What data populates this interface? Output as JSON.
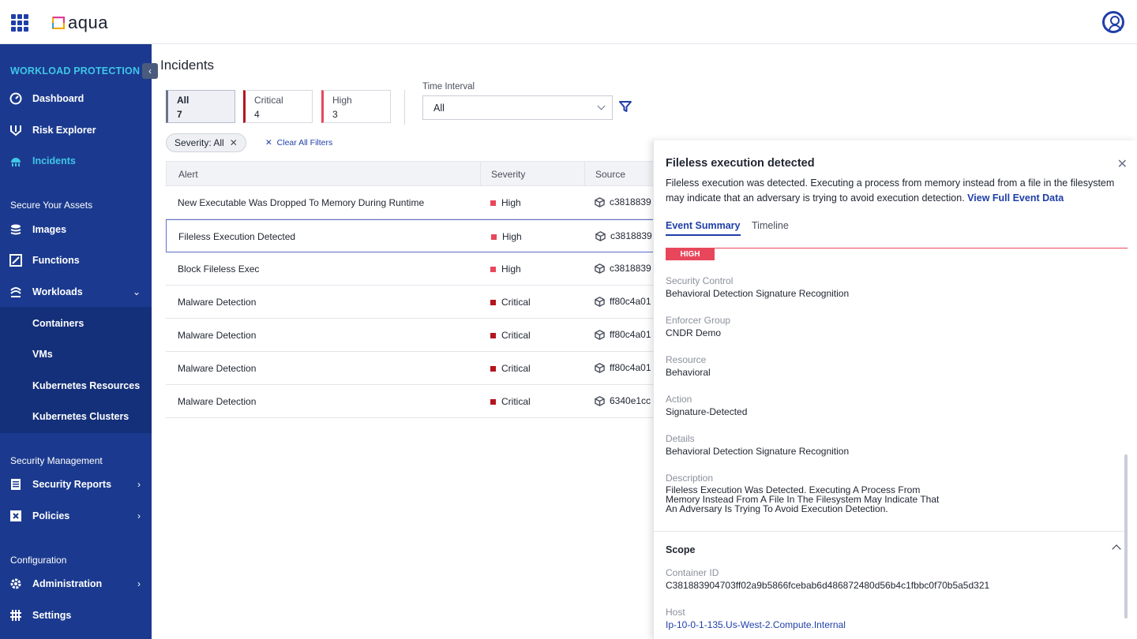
{
  "brand": {
    "name": "aqua"
  },
  "sidebar": {
    "heading": "WORKLOAD PROTECTION",
    "items_top": [
      {
        "label": "Dashboard",
        "icon": "gauge-icon"
      },
      {
        "label": "Risk Explorer",
        "icon": "risk-explorer-icon"
      },
      {
        "label": "Incidents",
        "icon": "incidents-icon",
        "active": true
      }
    ],
    "section_secure": "Secure Your Assets",
    "items_secure": [
      {
        "label": "Images",
        "icon": "layers-icon"
      },
      {
        "label": "Functions",
        "icon": "functions-icon"
      },
      {
        "label": "Workloads",
        "icon": "workloads-icon"
      }
    ],
    "workloads_sub": [
      "Containers",
      "VMs",
      "Kubernetes Resources",
      "Kubernetes Clusters"
    ],
    "section_security_mgmt": "Security Management",
    "items_security_mgmt": [
      {
        "label": "Security Reports",
        "icon": "report-icon"
      },
      {
        "label": "Policies",
        "icon": "policies-icon"
      }
    ],
    "section_config": "Configuration",
    "items_config": [
      {
        "label": "Administration",
        "icon": "gear-icon"
      },
      {
        "label": "Settings",
        "icon": "settings-icon"
      }
    ]
  },
  "page": {
    "title": "Incidents"
  },
  "severity_cards": [
    {
      "name": "All",
      "count": "7"
    },
    {
      "name": "Critical",
      "count": "4"
    },
    {
      "name": "High",
      "count": "3"
    }
  ],
  "time_interval": {
    "label": "Time Interval",
    "value": "All"
  },
  "filters": {
    "chip": "Severity: All",
    "clear": "Clear All Filters"
  },
  "table": {
    "headers": [
      "Alert",
      "Severity",
      "Source"
    ],
    "rows": [
      {
        "alert": "New Executable Was Dropped To Memory During Runtime",
        "severity": "High",
        "source": "c3818839"
      },
      {
        "alert": "Fileless Execution Detected",
        "severity": "High",
        "source": "c3818839"
      },
      {
        "alert": "Block Fileless Exec",
        "severity": "High",
        "source": "c3818839"
      },
      {
        "alert": "Malware Detection",
        "severity": "Critical",
        "source": "ff80c4a01"
      },
      {
        "alert": "Malware Detection",
        "severity": "Critical",
        "source": "ff80c4a01"
      },
      {
        "alert": "Malware Detection",
        "severity": "Critical",
        "source": "ff80c4a01"
      },
      {
        "alert": "Malware Detection",
        "severity": "Critical",
        "source": "6340e1cc"
      }
    ]
  },
  "colors": {
    "high": "#e8475b",
    "critical": "#b3151c",
    "accent": "#1f3fa8",
    "sidebar": "#1b3a8f",
    "active": "#3fc6e8"
  },
  "panel": {
    "title": "Fileless execution detected",
    "description": "Fileless execution was detected. Executing a process from memory instead from a file in the filesystem may indicate that an adversary is trying to avoid execution detection.",
    "link": "View Full Event Data",
    "tabs": [
      "Event Summary",
      "Timeline"
    ],
    "badge": "HIGH",
    "fields": [
      {
        "label": "Security Control",
        "value": "Behavioral Detection Signature Recognition"
      },
      {
        "label": "Enforcer Group",
        "value": "CNDR Demo"
      },
      {
        "label": "Resource",
        "value": "Behavioral"
      },
      {
        "label": "Action",
        "value": "Signature-Detected"
      },
      {
        "label": "Details",
        "value": "Behavioral Detection Signature Recognition"
      },
      {
        "label": "Description",
        "value": "Fileless Execution Was Detected. Executing A Process From Memory Instead From A File In The Filesystem May Indicate That An Adversary Is Trying To Avoid Execution Detection."
      }
    ],
    "scope_title": "Scope",
    "scope_fields": [
      {
        "label": "Container ID",
        "value": "C381883904703ff02a9b5866fcebab6d486872480d56b4c1fbbc0f70b5a5d321"
      },
      {
        "label": "Host",
        "value": "Ip-10-0-1-135.Us-West-2.Compute.Internal"
      }
    ]
  }
}
